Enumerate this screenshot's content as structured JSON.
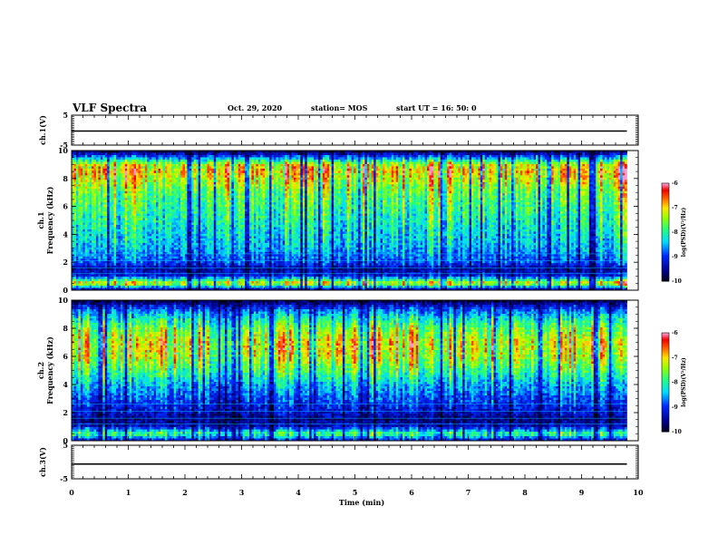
{
  "header": {
    "title": "VLF Spectra",
    "date": "Oct. 29, 2020",
    "station": "station= MOS",
    "start": "start  UT =   16: 50: 0"
  },
  "chart_data": [
    {
      "id": "ch1-waveform",
      "type": "line",
      "ylabel": "ch.1(V)",
      "ylim": [
        -5,
        5
      ],
      "yticks": [
        "5",
        "-5"
      ],
      "xlim": [
        0,
        10
      ],
      "series": [
        {
          "x": [
            0,
            9.8
          ],
          "y": [
            -0.3,
            -0.3
          ]
        }
      ]
    },
    {
      "id": "ch1-spectrogram",
      "type": "heatmap",
      "ylabel": "ch.1\nFrequency  (kHz)",
      "ylim": [
        0,
        10
      ],
      "yticks": [
        "0",
        "2",
        "4",
        "6",
        "8",
        "10"
      ],
      "xlim": [
        0,
        10
      ],
      "data_end_min": 9.8,
      "colorbar": {
        "label": "log(PSD)(V²/Hz)",
        "range": [
          -10,
          -6
        ],
        "ticks": [
          "-6",
          "-7",
          "-8",
          "-9",
          "-10"
        ]
      },
      "intensity_profile": {
        "freq_khz": [
          0,
          0.5,
          1,
          1.5,
          2,
          3,
          4,
          5,
          6,
          7,
          8,
          8.5,
          9,
          9.5,
          10
        ],
        "level": [
          0.1,
          0.75,
          0.25,
          0.15,
          0.3,
          0.4,
          0.45,
          0.5,
          0.55,
          0.6,
          0.72,
          0.78,
          0.7,
          0.35,
          0.05
        ]
      }
    },
    {
      "id": "ch2-spectrogram",
      "type": "heatmap",
      "ylabel": "ch.2\nFrequency  (kHz)",
      "ylim": [
        0,
        10
      ],
      "yticks": [
        "0",
        "2",
        "4",
        "6",
        "8",
        "10"
      ],
      "xlim": [
        0,
        10
      ],
      "data_end_min": 9.8,
      "colorbar": {
        "label": "log(PSD)(V²/Hz)",
        "range": [
          -10,
          -6
        ],
        "ticks": [
          "-6",
          "-7",
          "-8",
          "-9",
          "-10"
        ]
      },
      "intensity_profile": {
        "freq_khz": [
          0,
          0.5,
          1,
          1.5,
          2,
          3,
          4,
          5,
          6,
          7,
          8,
          8.5,
          9,
          9.5,
          10
        ],
        "level": [
          0.2,
          0.55,
          0.2,
          0.12,
          0.2,
          0.3,
          0.4,
          0.55,
          0.68,
          0.72,
          0.6,
          0.5,
          0.4,
          0.25,
          0.05
        ]
      }
    },
    {
      "id": "ch3-waveform",
      "type": "line",
      "ylabel": "ch.3(V)",
      "ylim": [
        -5,
        5
      ],
      "yticks": [
        "5",
        "-5"
      ],
      "xlim": [
        0,
        10
      ],
      "series": [
        {
          "x": [
            0,
            9.8
          ],
          "y": [
            -0.6,
            -0.6
          ]
        }
      ]
    }
  ],
  "xaxis": {
    "label": "Time  (min)",
    "ticks": [
      "0",
      "1",
      "2",
      "3",
      "4",
      "5",
      "6",
      "7",
      "8",
      "9",
      "10"
    ]
  },
  "colors": {
    "axis": "#000000",
    "background": "#ffffff"
  }
}
